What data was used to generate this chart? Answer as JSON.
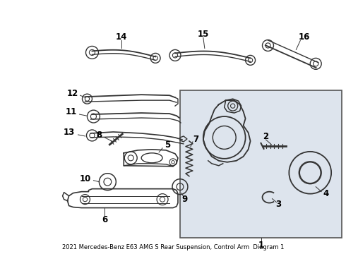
{
  "title": "2021 Mercedes-Benz E63 AMG S Rear Suspension, Control Arm  Diagram 1",
  "bg_color": "#ffffff",
  "line_color": "#333333",
  "text_color": "#000000",
  "box_bg": "#dde4ed",
  "box_border": "#555555",
  "figsize": [
    4.9,
    3.6
  ],
  "dpi": 100
}
